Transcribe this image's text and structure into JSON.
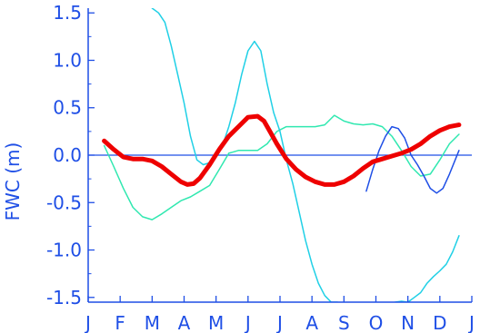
{
  "chart_data": {
    "type": "line",
    "title": "",
    "xlabel": "",
    "ylabel": "FWC (m)",
    "xlim": [
      0,
      12
    ],
    "ylim": [
      -1.55,
      1.55
    ],
    "x_tick_labels": [
      "J",
      "F",
      "M",
      "A",
      "M",
      "J",
      "J",
      "A",
      "S",
      "O",
      "N",
      "D",
      "J"
    ],
    "y_ticks": [
      -1.5,
      -1.0,
      -0.5,
      0.0,
      0.5,
      1.0,
      1.5
    ],
    "y_tick_labels": [
      "-1.5",
      "-1.0",
      "-0.5",
      "0.0",
      "0.5",
      "1.0",
      "1.5"
    ],
    "zero_line": 0,
    "grid": false,
    "colors": {
      "axis": "#1f4fe6",
      "mean_curve": "#ee0000",
      "envelope": "#30e8b0",
      "outer_envelope": "#20d0e6",
      "year_curve": "#1f4fe6"
    },
    "series": [
      {
        "key": "mean",
        "x": [
          0.5,
          0.8,
          1.1,
          1.4,
          1.7,
          2.0,
          2.3,
          2.6,
          2.9,
          3.1,
          3.3,
          3.5,
          3.8,
          4.1,
          4.4,
          4.7,
          5.0,
          5.3,
          5.5,
          5.7,
          5.9,
          6.2,
          6.5,
          6.8,
          7.1,
          7.4,
          7.7,
          8.0,
          8.3,
          8.6,
          8.9,
          9.2,
          9.5,
          9.8,
          10.1,
          10.4,
          10.7,
          11.0,
          11.3,
          11.6
        ],
        "y": [
          0.15,
          0.06,
          -0.02,
          -0.04,
          -0.04,
          -0.06,
          -0.12,
          -0.2,
          -0.28,
          -0.31,
          -0.3,
          -0.24,
          -0.1,
          0.06,
          0.2,
          0.3,
          0.4,
          0.41,
          0.36,
          0.24,
          0.12,
          -0.04,
          -0.15,
          -0.23,
          -0.28,
          -0.31,
          -0.31,
          -0.28,
          -0.22,
          -0.14,
          -0.07,
          -0.04,
          -0.01,
          0.02,
          0.06,
          0.12,
          0.2,
          0.26,
          0.3,
          0.32
        ]
      },
      {
        "key": "envelope_low",
        "x": [
          0.5,
          0.8,
          1.1,
          1.4,
          1.7,
          2.0,
          2.3,
          2.6,
          2.9,
          3.2,
          3.5,
          3.8,
          4.1,
          4.4,
          4.7,
          5.0,
          5.3,
          5.6,
          5.9,
          6.2,
          6.5,
          6.8,
          7.1,
          7.4,
          7.7,
          8.0,
          8.3,
          8.6,
          8.9,
          9.2,
          9.5,
          9.8,
          10.1,
          10.4,
          10.7,
          11.0,
          11.3,
          11.6
        ],
        "y": [
          0.1,
          -0.12,
          -0.35,
          -0.55,
          -0.65,
          -0.68,
          -0.62,
          -0.55,
          -0.48,
          -0.44,
          -0.38,
          -0.32,
          -0.15,
          0.02,
          0.05,
          0.05,
          0.05,
          0.12,
          0.25,
          0.3,
          0.3,
          0.3,
          0.3,
          0.32,
          0.42,
          0.36,
          0.33,
          0.32,
          0.33,
          0.3,
          0.2,
          0.05,
          -0.12,
          -0.22,
          -0.2,
          -0.05,
          0.12,
          0.22
        ]
      },
      {
        "key": "envelope_high",
        "x": [
          2.0,
          2.2,
          2.4,
          2.6,
          2.8,
          3.0,
          3.2,
          3.4,
          3.6,
          3.8,
          4.0,
          4.2,
          4.4,
          4.6,
          4.8,
          5.0,
          5.2,
          5.4,
          5.6,
          5.8,
          6.0,
          6.2,
          6.4,
          6.6,
          6.8,
          7.0,
          7.2,
          7.4,
          7.6,
          7.8
        ],
        "y": [
          1.55,
          1.5,
          1.4,
          1.15,
          0.85,
          0.55,
          0.2,
          -0.05,
          -0.1,
          -0.08,
          0.0,
          0.1,
          0.3,
          0.55,
          0.85,
          1.1,
          1.2,
          1.1,
          0.75,
          0.45,
          0.25,
          -0.05,
          -0.3,
          -0.6,
          -0.9,
          -1.15,
          -1.35,
          -1.48,
          -1.55,
          -1.55
        ]
      },
      {
        "key": "outer_low",
        "x": [
          9.6,
          9.8,
          10.0,
          10.2,
          10.4,
          10.6,
          10.8,
          11.0,
          11.2,
          11.4,
          11.6
        ],
        "y": [
          -1.55,
          -1.54,
          -1.55,
          -1.5,
          -1.45,
          -1.35,
          -1.28,
          -1.22,
          -1.15,
          -1.02,
          -0.85
        ]
      },
      {
        "key": "year_2007",
        "x": [
          8.7,
          8.9,
          9.1,
          9.3,
          9.5,
          9.7,
          9.9,
          10.1,
          10.3,
          10.5,
          10.7,
          10.9,
          11.1,
          11.3,
          11.6
        ],
        "y": [
          -0.38,
          -0.15,
          0.05,
          0.2,
          0.3,
          0.28,
          0.18,
          0.0,
          -0.1,
          -0.22,
          -0.35,
          -0.4,
          -0.35,
          -0.2,
          0.05
        ]
      }
    ]
  }
}
